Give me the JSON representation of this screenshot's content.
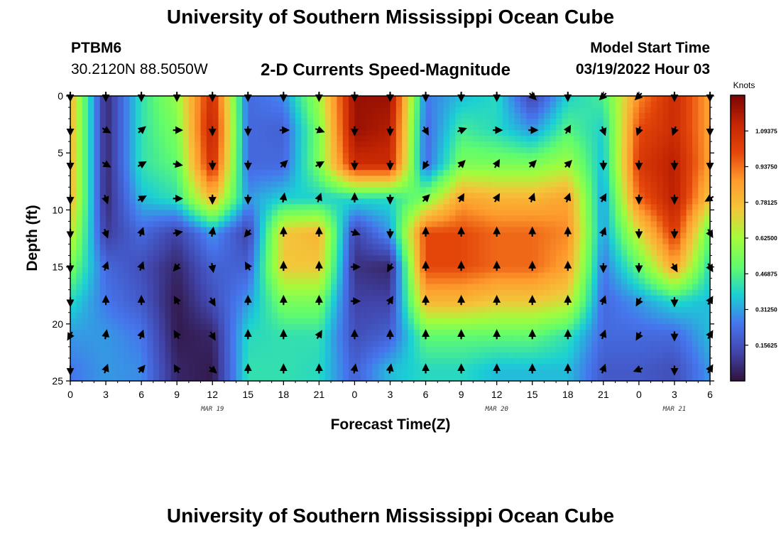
{
  "header": {
    "title": "University of Southern Mississippi Ocean Cube",
    "station_id": "PTBM6",
    "station_coords": "30.2120N  88.5050W",
    "product": "2-D Currents Speed-Magnitude",
    "model_start_label": "Model Start Time",
    "model_start_value": "03/19/2022 Hour 03"
  },
  "footer": {
    "title": "University of Southern Mississippi Ocean Cube"
  },
  "chart_data": {
    "type": "heatmap",
    "title": "2-D Currents Speed-Magnitude",
    "xlabel": "Forecast Time(Z)",
    "ylabel": "Depth (ft)",
    "x_tick_labels": [
      "0",
      "3",
      "6",
      "9",
      "12",
      "15",
      "18",
      "21",
      "0",
      "3",
      "6",
      "9",
      "12",
      "15",
      "18",
      "21",
      "0",
      "3",
      "6"
    ],
    "x_range_hours": [
      0,
      54
    ],
    "date_labels": [
      {
        "text": "MAR 19",
        "hour": 12
      },
      {
        "text": "MAR 20",
        "hour": 36
      },
      {
        "text": "MAR 21",
        "hour": 51
      }
    ],
    "y_ticks": [
      0,
      5,
      10,
      15,
      20,
      25
    ],
    "ylim": [
      0,
      25
    ],
    "colorbar": {
      "title": "Knots",
      "range": [
        0,
        1.25
      ],
      "tick_labels": [
        "1.09375",
        "0.93750",
        "0.78125",
        "0.62500",
        "0.46875",
        "0.31250",
        "0.15625"
      ],
      "tick_values": [
        1.09375,
        0.9375,
        0.78125,
        0.625,
        0.46875,
        0.3125,
        0.15625
      ]
    },
    "speed_grid": {
      "x_hours": [
        0,
        3,
        6,
        9,
        12,
        15,
        18,
        21,
        24,
        27,
        30,
        33,
        36,
        39,
        42,
        45,
        48,
        51,
        54
      ],
      "depths_ft": [
        0,
        3,
        6,
        9,
        12,
        15,
        18,
        21,
        24
      ],
      "values": [
        [
          0.8,
          0.05,
          0.42,
          0.6,
          1.1,
          0.22,
          0.28,
          0.62,
          1.2,
          1.2,
          0.25,
          0.35,
          0.4,
          0.12,
          0.38,
          0.46,
          0.9,
          1.1,
          0.85
        ],
        [
          0.8,
          0.05,
          0.42,
          0.55,
          1.15,
          0.22,
          0.2,
          0.55,
          1.2,
          1.15,
          0.22,
          0.45,
          0.4,
          0.3,
          0.48,
          0.38,
          1.0,
          1.1,
          0.85
        ],
        [
          0.8,
          0.05,
          0.42,
          0.5,
          1.1,
          0.22,
          0.22,
          0.55,
          1.1,
          1.1,
          0.22,
          0.55,
          0.55,
          0.55,
          0.62,
          0.35,
          1.05,
          1.15,
          0.85
        ],
        [
          0.8,
          0.05,
          0.35,
          0.42,
          0.8,
          0.3,
          0.38,
          0.38,
          0.4,
          0.4,
          0.55,
          0.85,
          0.8,
          0.8,
          0.85,
          0.3,
          0.95,
          1.15,
          0.75
        ],
        [
          0.7,
          0.1,
          0.22,
          0.12,
          0.3,
          0.12,
          0.75,
          0.8,
          0.12,
          0.3,
          1.0,
          1.0,
          0.95,
          0.95,
          0.9,
          0.3,
          0.7,
          1.05,
          0.5
        ],
        [
          0.55,
          0.22,
          0.15,
          0.05,
          0.2,
          0.2,
          0.75,
          0.75,
          0.08,
          0.05,
          1.0,
          1.0,
          0.95,
          0.95,
          0.85,
          0.25,
          0.5,
          0.85,
          0.4
        ],
        [
          0.4,
          0.25,
          0.18,
          0.02,
          0.15,
          0.3,
          0.55,
          0.55,
          0.12,
          0.12,
          0.8,
          0.8,
          0.75,
          0.75,
          0.7,
          0.22,
          0.3,
          0.4,
          0.35
        ],
        [
          0.3,
          0.3,
          0.25,
          0.02,
          0.05,
          0.4,
          0.42,
          0.42,
          0.15,
          0.2,
          0.5,
          0.5,
          0.5,
          0.5,
          0.42,
          0.22,
          0.22,
          0.22,
          0.35
        ],
        [
          0.25,
          0.3,
          0.28,
          0.05,
          0.02,
          0.42,
          0.42,
          0.4,
          0.2,
          0.35,
          0.4,
          0.4,
          0.35,
          0.35,
          0.35,
          0.18,
          0.18,
          0.15,
          0.3
        ]
      ]
    },
    "current_vectors": {
      "x_hours": [
        0,
        3,
        6,
        9,
        12,
        15,
        18,
        21,
        24,
        27,
        30,
        33,
        36,
        39,
        42,
        45,
        48,
        51,
        54
      ],
      "depths_ft": [
        0,
        3,
        6,
        9,
        12,
        15,
        18,
        21,
        24
      ],
      "direction_deg": [
        [
          180,
          180,
          180,
          180,
          180,
          180,
          180,
          180,
          180,
          180,
          180,
          180,
          180,
          135,
          180,
          225,
          225,
          180,
          180
        ],
        [
          180,
          120,
          50,
          90,
          180,
          180,
          90,
          110,
          180,
          180,
          150,
          70,
          90,
          90,
          30,
          160,
          200,
          200,
          180
        ],
        [
          180,
          120,
          60,
          100,
          180,
          180,
          45,
          60,
          180,
          180,
          210,
          45,
          30,
          45,
          45,
          180,
          180,
          180,
          180
        ],
        [
          180,
          160,
          60,
          90,
          180,
          180,
          10,
          20,
          0,
          180,
          45,
          30,
          30,
          20,
          20,
          30,
          180,
          180,
          240
        ],
        [
          180,
          160,
          20,
          80,
          10,
          220,
          0,
          0,
          110,
          180,
          0,
          0,
          0,
          0,
          0,
          20,
          180,
          180,
          150
        ],
        [
          180,
          20,
          20,
          220,
          170,
          330,
          0,
          0,
          90,
          210,
          0,
          0,
          0,
          0,
          0,
          180,
          180,
          150,
          150
        ],
        [
          180,
          0,
          0,
          330,
          150,
          0,
          0,
          0,
          90,
          30,
          0,
          0,
          0,
          0,
          0,
          20,
          210,
          180,
          30
        ],
        [
          210,
          10,
          20,
          330,
          150,
          0,
          0,
          30,
          0,
          0,
          0,
          0,
          0,
          0,
          0,
          20,
          210,
          180,
          30
        ],
        [
          180,
          20,
          40,
          330,
          130,
          0,
          0,
          0,
          10,
          10,
          0,
          0,
          0,
          0,
          0,
          20,
          250,
          180,
          30
        ]
      ]
    }
  }
}
